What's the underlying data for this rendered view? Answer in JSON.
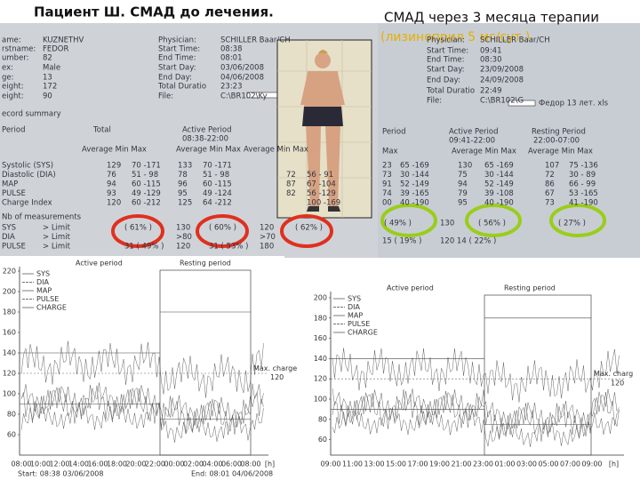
{
  "titles": {
    "left": "Пациент Ш. СМАД до лечения.",
    "right": "СМАД через 3 месяца терапии",
    "right_note": "(лизиноприл 5 мг/сут.)"
  },
  "before_report": {
    "patient": [
      [
        "ame:",
        "KUZNETHV"
      ],
      [
        "rstname:",
        "FEDOR"
      ],
      [
        "umber:",
        "82"
      ],
      [
        "ex:",
        "Male"
      ],
      [
        "ge:",
        "13"
      ],
      [
        "eight:",
        "172"
      ],
      [
        "eight:",
        "90"
      ]
    ],
    "session": [
      [
        "Physician:",
        "SCHILLER Baar/CH"
      ],
      [
        "Start Time:",
        "08:38"
      ],
      [
        "End Time:",
        "08:01"
      ],
      [
        "Start Day:",
        "03/06/2008"
      ],
      [
        "End Day:",
        "04/06/2008"
      ],
      [
        "Total Duratio",
        "23:23"
      ],
      [
        "File:",
        "C:\\BR102\\Ky"
      ]
    ],
    "section": "ecord summary",
    "header": [
      "Period",
      "Total",
      "Active Period",
      "08:38-22:00",
      "Average Min Max",
      "Average Min Max",
      "Average Min Max"
    ],
    "rows": [
      [
        "Systolic (SYS)",
        "129",
        "70 -171",
        "133",
        "70 -171",
        null,
        null
      ],
      [
        "Diastolic (DIA)",
        "76",
        "51 - 98",
        "78",
        "51 - 98",
        "72",
        "56 - 91"
      ],
      [
        "MAP",
        "94",
        "60 -115",
        "96",
        "60 -115",
        "87",
        "67 -104"
      ],
      [
        "PULSE",
        "93",
        "49 -129",
        "95",
        "49 -124",
        "82",
        "56 -129"
      ],
      [
        "Charge Index",
        "120",
        "60 -212",
        "125",
        "64 -212",
        null,
        "100 -169"
      ]
    ],
    "limits_title": "Nb of measurements",
    "limits": [
      [
        "SYS",
        "> Limit",
        "( 61% )",
        "130",
        "( 60% )",
        "120",
        "( 62% )"
      ],
      [
        "DIA",
        "> Limit",
        null,
        ">80",
        null,
        ">70",
        null
      ],
      [
        "PULSE",
        "> Limit",
        "31 ( 49% )",
        "120",
        "31 ( 53% )",
        "180",
        null
      ]
    ]
  },
  "after_report": {
    "session": [
      [
        "Physician:",
        "SCHILLER Baar/CH"
      ],
      [
        "Start Time:",
        "09:41"
      ],
      [
        "End Time:",
        "08:30"
      ],
      [
        "Start Day:",
        "23/09/2008"
      ],
      [
        "End Day:",
        "24/09/2008"
      ],
      [
        "Total Duratio",
        "22:49"
      ],
      [
        "File:",
        "C:\\BR102\\G"
      ]
    ],
    "file_note": "Федор 13 лет. xls",
    "header": [
      "Period",
      "Active Period",
      "09:41-22:00",
      "Resting Period",
      "22:00-07:00",
      "Max",
      "Average Min Max",
      "Average Min Max"
    ],
    "rows": [
      [
        "23",
        "65 -169",
        "130",
        "65 -169",
        "107",
        "75 -136"
      ],
      [
        "73",
        "30 -144",
        "75",
        "30 -144",
        "72",
        "30 - 89"
      ],
      [
        "91",
        "52 -149",
        "94",
        "52 -149",
        "86",
        "66 - 99"
      ],
      [
        "74",
        "39 -165",
        "79",
        "39 -108",
        "67",
        "53 -165"
      ],
      [
        "00",
        "40 -190",
        "95",
        "40 -190",
        "73",
        "41 -190"
      ]
    ],
    "limits": [
      [
        "( 49% )",
        "130",
        "( 56% )",
        "( 27% )"
      ],
      [
        "15 ( 19% )",
        "120 14 ( 22% )"
      ]
    ]
  },
  "before_plot": {
    "legend": [
      "SYS",
      "DIA",
      "MAP",
      "PULSE",
      "CHARGE"
    ],
    "active": "Active period",
    "resting": "Resting period",
    "max_label": "Max. charge",
    "max_value": 120,
    "yticks": [
      220,
      200,
      180,
      160,
      140,
      120,
      100,
      80,
      60
    ],
    "xticks": [
      "08:00",
      "10:00",
      "12:00",
      "14:00",
      "16:00",
      "18:00",
      "20:00",
      "22:00",
      "00:00",
      "02:00",
      "04:00",
      "06:00",
      "08:00",
      "[h]"
    ],
    "start": "Start: 08:38 03/06/2008",
    "end": "End: 08:01 04/06/2008"
  },
  "after_plot": {
    "legend": [
      "SYS",
      "DIA",
      "MAP",
      "PULSE",
      "CHARGE"
    ],
    "active": "Active period",
    "resting": "Resting period",
    "max_label": "Max. charg",
    "max_value": 120,
    "yticks": [
      200,
      180,
      160,
      140,
      120,
      100,
      80,
      60
    ],
    "xticks": [
      "09:00",
      "11:00",
      "13:00",
      "15:00",
      "17:00",
      "19:00",
      "21:00",
      "23:00",
      "01:00",
      "03:00",
      "05:00",
      "07:00",
      "09:00",
      "[h]"
    ]
  }
}
